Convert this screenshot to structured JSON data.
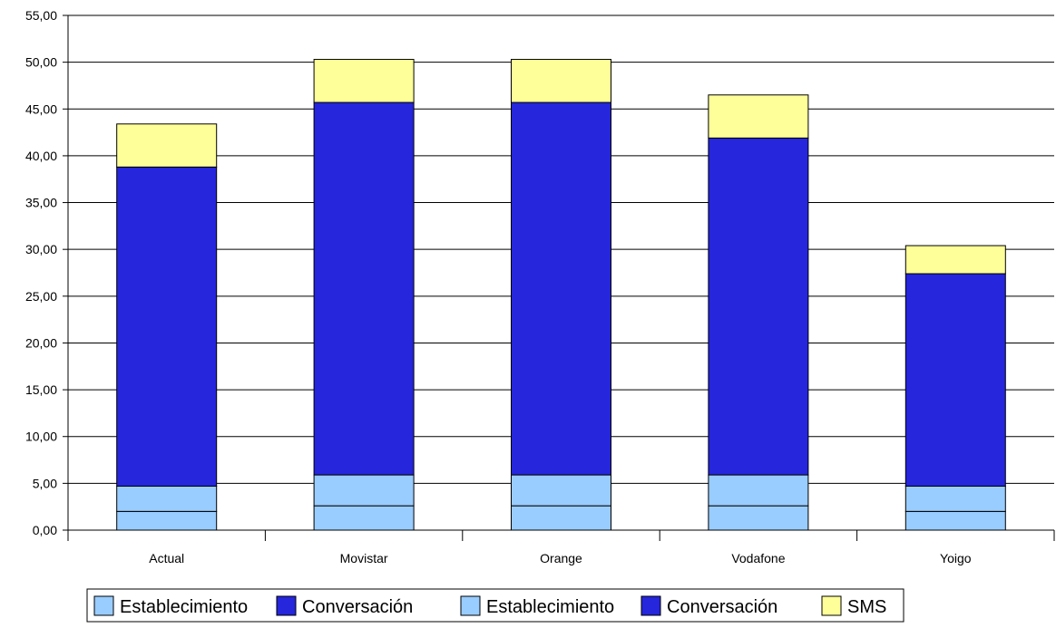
{
  "chart_data": {
    "type": "bar",
    "stacked": true,
    "categories": [
      "Actual",
      "Movistar",
      "Orange",
      "Vodafone",
      "Yoigo"
    ],
    "ylim": [
      0,
      55
    ],
    "yticks": [
      "0,00",
      "5,00",
      "10,00",
      "15,00",
      "20,00",
      "25,00",
      "30,00",
      "35,00",
      "40,00",
      "45,00",
      "50,00",
      "55,00"
    ],
    "series": [
      {
        "name": "Establecimiento",
        "color": "#99ccff",
        "values": [
          2.0,
          2.6,
          2.6,
          2.6,
          2.0
        ]
      },
      {
        "name": "Establecimiento",
        "color": "#99ccff",
        "values": [
          2.7,
          3.3,
          3.3,
          3.3,
          2.7
        ]
      },
      {
        "name": "Conversación",
        "color": "#2626dc",
        "values": [
          34.1,
          39.8,
          39.8,
          36.0,
          22.7
        ]
      },
      {
        "name": "SMS",
        "color": "#ffff99",
        "values": [
          4.6,
          4.6,
          4.6,
          4.6,
          3.0
        ]
      }
    ],
    "legend": {
      "position": "bottom",
      "entries": [
        {
          "name": "Establecimiento",
          "color": "#99ccff"
        },
        {
          "name": "Conversación",
          "color": "#2626dc"
        },
        {
          "name": "Establecimiento",
          "color": "#99ccff"
        },
        {
          "name": "Conversación",
          "color": "#2626dc"
        },
        {
          "name": "SMS",
          "color": "#ffff99"
        }
      ]
    },
    "grid": true,
    "title": "",
    "xlabel": "",
    "ylabel": ""
  }
}
